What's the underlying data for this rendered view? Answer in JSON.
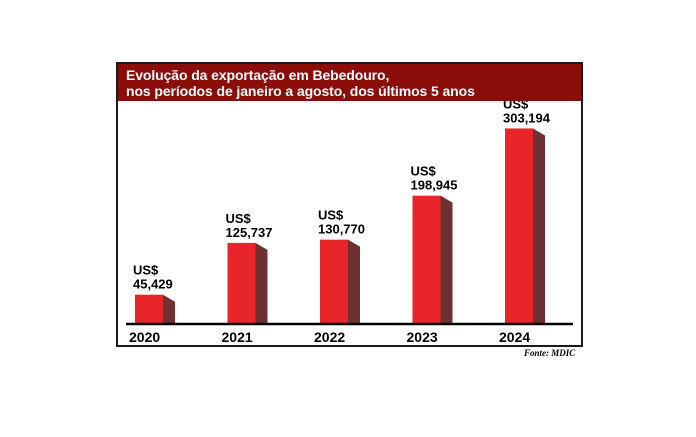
{
  "chart_data": {
    "type": "bar",
    "title": "Evolução da exportação em Bebedouro,",
    "subtitle": "nos períodos de janeiro a agosto, dos últimos 5 anos",
    "categories": [
      "2020",
      "2021",
      "2022",
      "2023",
      "2024"
    ],
    "values": [
      45.429,
      125.737,
      130.77,
      198.945,
      303.194
    ],
    "value_labels": [
      {
        "currency": "US$",
        "amount": "45,429"
      },
      {
        "currency": "US$",
        "amount": "125,737"
      },
      {
        "currency": "US$",
        "amount": "130,770"
      },
      {
        "currency": "US$",
        "amount": "198,945"
      },
      {
        "currency": "US$",
        "amount": "303,194"
      }
    ],
    "xlabel": "",
    "ylabel": "",
    "ylim": [
      0,
      340
    ],
    "grid": false,
    "colors": {
      "bar_front": "#e8262a",
      "bar_side": "#6e3033",
      "title_bg": "#8b0d0a"
    }
  },
  "source": "Fonte: MDIC"
}
